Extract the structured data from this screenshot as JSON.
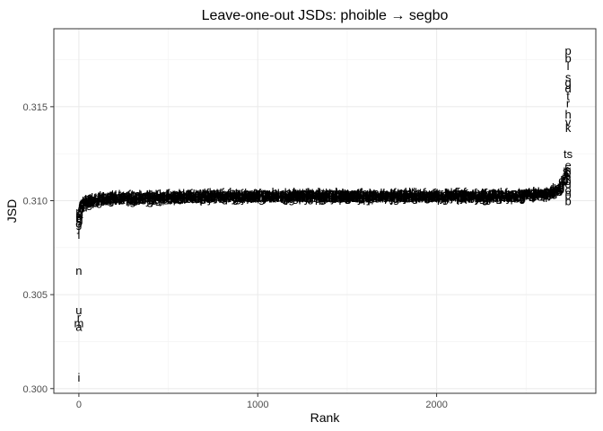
{
  "chart_data": {
    "type": "scatter",
    "title": "Leave-one-out JSDs: phoible → segbo",
    "xlabel": "Rank",
    "ylabel": "JSD",
    "xlim": [
      -140,
      2890
    ],
    "ylim": [
      0.29975,
      0.31915
    ],
    "x_ticks": [
      0,
      1000,
      2000
    ],
    "x_tick_labels": [
      "0",
      "1000",
      "2000"
    ],
    "y_ticks": [
      0.3,
      0.305,
      0.31,
      0.315
    ],
    "y_tick_labels": [
      "0.300",
      "0.305",
      "0.310",
      "0.315"
    ],
    "grid": true,
    "point_markers": "text labels (segment symbols)",
    "points": [
      {
        "x": 0,
        "y": 0.3006,
        "label": "i"
      },
      {
        "x": 0,
        "y": 0.3033,
        "label": "a"
      },
      {
        "x": 0,
        "y": 0.3035,
        "label": "m"
      },
      {
        "x": 0,
        "y": 0.3038,
        "label": "r"
      },
      {
        "x": 0,
        "y": 0.3042,
        "label": "u"
      },
      {
        "x": 0,
        "y": 0.3063,
        "label": "n"
      },
      {
        "x": 0,
        "y": 0.3082,
        "label": "l"
      },
      {
        "x": 0,
        "y": 0.3086,
        "label": "ʃ"
      },
      {
        "x": 0,
        "y": 0.3088,
        "label": "g"
      },
      {
        "x": 0,
        "y": 0.3088,
        "label": "o"
      },
      {
        "x": 0,
        "y": 0.3092,
        "label": "ə"
      },
      {
        "x": 2735,
        "y": 0.31,
        "label": "b"
      },
      {
        "x": 2735,
        "y": 0.3103,
        "label": "θ"
      },
      {
        "x": 2735,
        "y": 0.3106,
        "label": "o"
      },
      {
        "x": 2735,
        "y": 0.3109,
        "label": "d"
      },
      {
        "x": 2735,
        "y": 0.3112,
        "label": "ʒ"
      },
      {
        "x": 2735,
        "y": 0.3115,
        "label": "ɛ"
      },
      {
        "x": 2735,
        "y": 0.3119,
        "label": "e"
      },
      {
        "x": 2735,
        "y": 0.3125,
        "label": "ts"
      },
      {
        "x": 2735,
        "y": 0.3139,
        "label": "k"
      },
      {
        "x": 2735,
        "y": 0.3142,
        "label": "v"
      },
      {
        "x": 2735,
        "y": 0.3146,
        "label": "h"
      },
      {
        "x": 2735,
        "y": 0.3152,
        "label": "r"
      },
      {
        "x": 2735,
        "y": 0.3156,
        "label": "t"
      },
      {
        "x": 2735,
        "y": 0.316,
        "label": "d"
      },
      {
        "x": 2735,
        "y": 0.3163,
        "label": "g"
      },
      {
        "x": 2735,
        "y": 0.3166,
        "label": "s"
      },
      {
        "x": 2735,
        "y": 0.3172,
        "label": "l"
      },
      {
        "x": 2735,
        "y": 0.3176,
        "label": "b"
      },
      {
        "x": 2735,
        "y": 0.318,
        "label": "p"
      }
    ],
    "dense_band": {
      "x_start": 0,
      "x_end": 2730,
      "y_profile": [
        [
          0,
          0.3092
        ],
        [
          15,
          0.3097
        ],
        [
          40,
          0.31
        ],
        [
          100,
          0.3101
        ],
        [
          200,
          0.3102
        ],
        [
          400,
          0.3102
        ],
        [
          800,
          0.3103
        ],
        [
          1600,
          0.3103
        ],
        [
          2400,
          0.3103
        ],
        [
          2600,
          0.3104
        ],
        [
          2680,
          0.3106
        ],
        [
          2710,
          0.311
        ],
        [
          2730,
          0.3117
        ]
      ]
    }
  }
}
